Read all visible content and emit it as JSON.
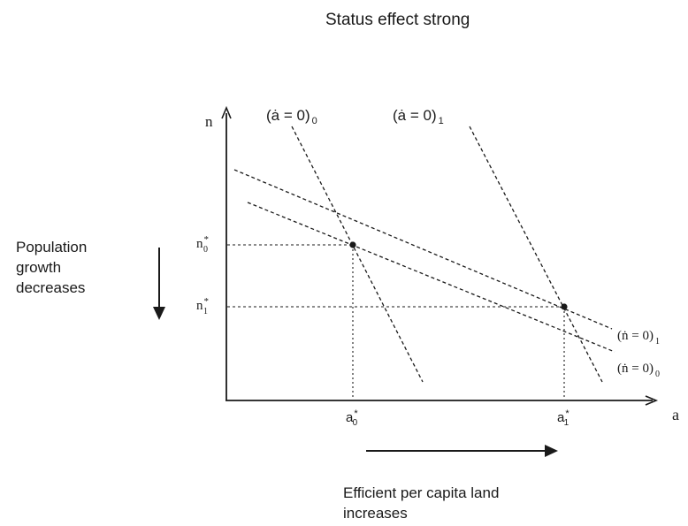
{
  "title": "Status effect strong",
  "left_note": {
    "lines": [
      "Population",
      "growth",
      "decreases"
    ]
  },
  "bottom_note": {
    "lines": [
      "Efficient per capita land",
      "increases"
    ]
  },
  "axes": {
    "x_label": "a",
    "y_label": "n"
  },
  "curves": {
    "a_dot_0": {
      "main": "(ȧ = 0)",
      "sub": "0"
    },
    "a_dot_1": {
      "main": "(ȧ = 0)",
      "sub": "1"
    },
    "n_dot_1": {
      "main": "(ṅ = 0)",
      "sub": "1"
    },
    "n_dot_0": {
      "main": "(ṅ = 0)",
      "sub": "0"
    }
  },
  "equilibria": {
    "n0": {
      "base": "n",
      "sup": "*",
      "sub": "0"
    },
    "n1": {
      "base": "n",
      "sup": "*",
      "sub": "1"
    },
    "a0": {
      "base": "a",
      "sup": "*",
      "sub": "0"
    },
    "a1": {
      "base": "a",
      "sup": "*",
      "sub": "1"
    }
  },
  "colors": {
    "ink": "#1a1a1a"
  }
}
